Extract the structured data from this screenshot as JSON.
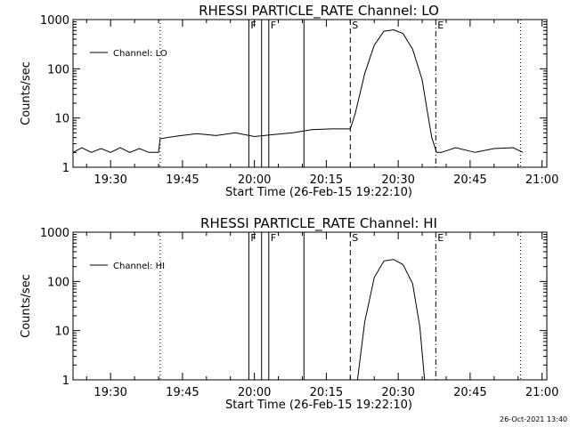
{
  "chart_data": [
    {
      "type": "line",
      "title": "RHESSI PARTICLE_RATE Channel: LO",
      "xlabel": "Start Time (26-Feb-15 19:22:10)",
      "ylabel": "Counts/sec",
      "y_scale": "log",
      "xlim": [
        "19:22:10",
        "21:01:00"
      ],
      "ylim": [
        1,
        1000
      ],
      "x_ticks": [
        "19:30",
        "19:45",
        "20:00",
        "20:15",
        "20:30",
        "20:45",
        "21:00"
      ],
      "y_ticks": [
        "1",
        "10",
        "100",
        "1000"
      ],
      "legend": {
        "position": "top-left",
        "entries": [
          "Channel: LO"
        ]
      },
      "markers": [
        {
          "label": "",
          "time": "19:40:20",
          "style": "dotted"
        },
        {
          "label": "F",
          "time": "19:58:50",
          "style": "solid"
        },
        {
          "label": "",
          "time": "20:01:30",
          "style": "solid"
        },
        {
          "label": "F",
          "time": "20:03:00",
          "style": "solid"
        },
        {
          "label": "",
          "time": "20:10:20",
          "style": "solid"
        },
        {
          "label": "S",
          "time": "20:20:00",
          "style": "dashed"
        },
        {
          "label": "E",
          "time": "20:37:50",
          "style": "dashdot"
        },
        {
          "label": "",
          "time": "20:55:30",
          "style": "dotted"
        }
      ],
      "series": [
        {
          "name": "Channel: LO",
          "x": [
            "19:22:10",
            "19:24:00",
            "19:26:00",
            "19:28:00",
            "19:30:00",
            "19:32:00",
            "19:34:00",
            "19:36:00",
            "19:38:00",
            "19:40:00",
            "19:40:20",
            "19:44:00",
            "19:48:00",
            "19:52:00",
            "19:56:00",
            "20:00:00",
            "20:04:00",
            "20:08:00",
            "20:12:00",
            "20:16:00",
            "20:18:00",
            "20:20:00",
            "20:21:00",
            "20:23:00",
            "20:25:00",
            "20:27:00",
            "20:29:00",
            "20:31:00",
            "20:33:00",
            "20:35:00",
            "20:36:00",
            "20:37:00",
            "20:38:00",
            "20:39:00",
            "20:42:00",
            "20:46:00",
            "20:50:00",
            "20:54:00",
            "20:56:00"
          ],
          "y": [
            2.0,
            2.5,
            2.0,
            2.4,
            2.0,
            2.5,
            2.0,
            2.4,
            2.0,
            2.0,
            3.8,
            4.3,
            4.8,
            4.4,
            5.0,
            4.2,
            4.6,
            5.0,
            5.8,
            6.0,
            6.0,
            6.0,
            12,
            80,
            300,
            580,
            620,
            520,
            250,
            60,
            15,
            4,
            2.0,
            2.0,
            2.5,
            2.0,
            2.4,
            2.5,
            2.0
          ]
        }
      ]
    },
    {
      "type": "line",
      "title": "RHESSI PARTICLE_RATE Channel: HI",
      "xlabel": "Start Time (26-Feb-15 19:22:10)",
      "ylabel": "Counts/sec",
      "y_scale": "log",
      "xlim": [
        "19:22:10",
        "21:01:00"
      ],
      "ylim": [
        1,
        1000
      ],
      "x_ticks": [
        "19:30",
        "19:45",
        "20:00",
        "20:15",
        "20:30",
        "20:45",
        "21:00"
      ],
      "y_ticks": [
        "1",
        "10",
        "100",
        "1000"
      ],
      "legend": {
        "position": "top-left",
        "entries": [
          "Channel: HI"
        ]
      },
      "markers": [
        {
          "label": "",
          "time": "19:40:20",
          "style": "dotted"
        },
        {
          "label": "F",
          "time": "19:58:50",
          "style": "solid"
        },
        {
          "label": "",
          "time": "20:01:30",
          "style": "solid"
        },
        {
          "label": "F",
          "time": "20:03:00",
          "style": "solid"
        },
        {
          "label": "",
          "time": "20:10:20",
          "style": "solid"
        },
        {
          "label": "S",
          "time": "20:20:00",
          "style": "dashed"
        },
        {
          "label": "E",
          "time": "20:37:50",
          "style": "dashdot"
        },
        {
          "label": "",
          "time": "20:55:30",
          "style": "dotted"
        }
      ],
      "series": [
        {
          "name": "Channel: HI",
          "x": [
            "20:21:30",
            "20:23:00",
            "20:25:00",
            "20:27:00",
            "20:29:00",
            "20:31:00",
            "20:33:00",
            "20:34:30",
            "20:35:30"
          ],
          "y": [
            1.0,
            15,
            120,
            260,
            280,
            220,
            90,
            12,
            1.0
          ]
        }
      ]
    }
  ],
  "timestamp": "26-Oct-2021 13:40"
}
